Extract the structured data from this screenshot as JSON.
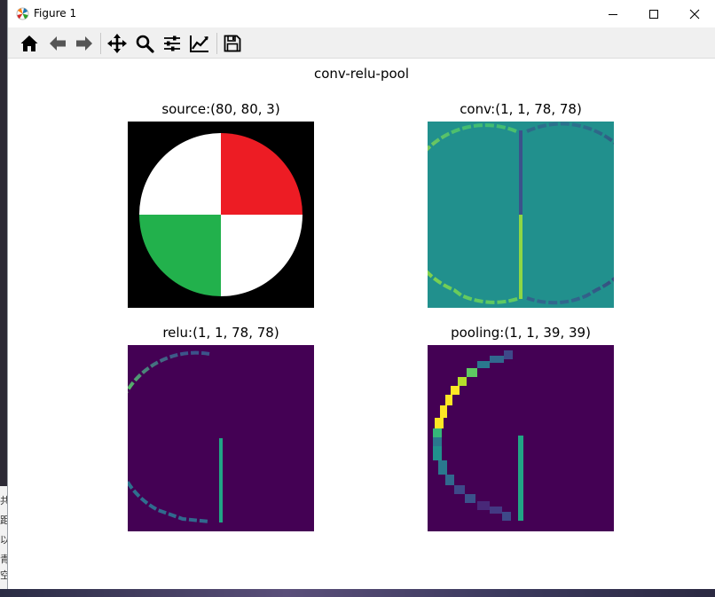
{
  "window": {
    "title": "Figure 1"
  },
  "toolbar": {
    "tools": [
      "home-icon",
      "back-arrow-icon",
      "forward-arrow-icon",
      "pan-icon",
      "zoom-icon",
      "configure-subplots-icon",
      "edit-axis-icon",
      "save-icon"
    ]
  },
  "figure": {
    "suptitle": "conv-relu-pool",
    "panels": [
      {
        "title": "source:(80, 80, 3)"
      },
      {
        "title": "conv:(1, 1, 78, 78)"
      },
      {
        "title": "relu:(1, 1, 78, 78)"
      },
      {
        "title": "pooling:(1, 1, 39, 39)"
      }
    ]
  },
  "desktop": {
    "side_glyphs": [
      "共",
      "距",
      "以",
      "青",
      "空"
    ]
  },
  "colors": {
    "source_bg": "#000000",
    "quad_red": "#ed1c24",
    "quad_green": "#22b14c",
    "quad_white": "#ffffff",
    "viridis_teal": "#21908d",
    "viridis_purple": "#440154",
    "viridis_yellow": "#fde725"
  }
}
